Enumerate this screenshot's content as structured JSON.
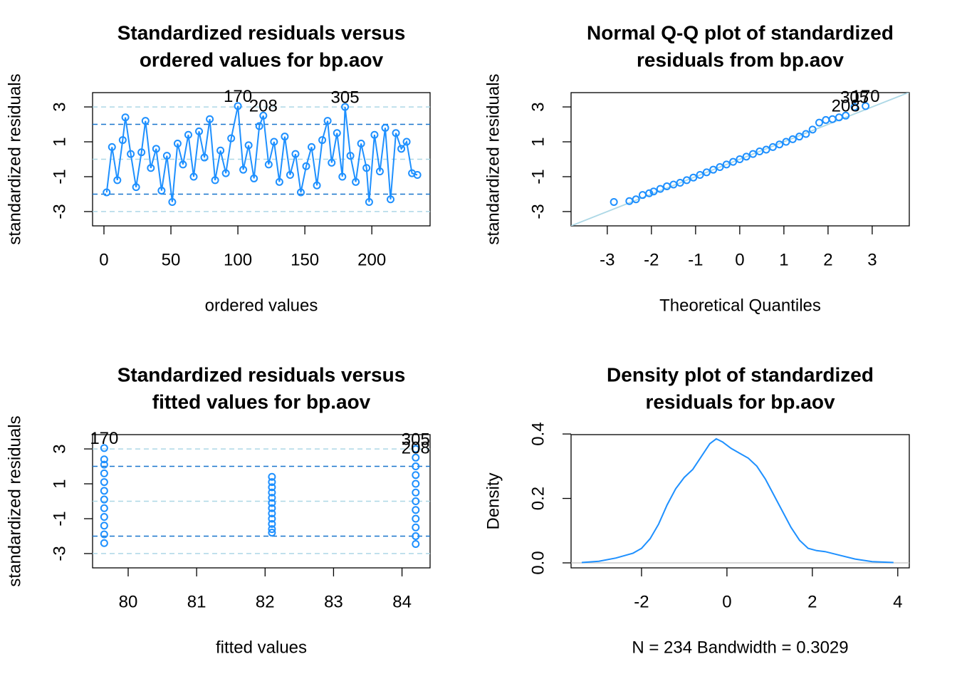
{
  "chart_data": [
    {
      "type": "line",
      "markers": true,
      "title_lines": [
        "Standardized residuals versus",
        "ordered values for bp.aov"
      ],
      "xlabel": "ordered values",
      "ylabel": "standardized residuals",
      "xlim": [
        -8.5,
        243.5
      ],
      "ylim": [
        -3.82,
        3.82
      ],
      "xticks": [
        0,
        50,
        100,
        150,
        200
      ],
      "yticks": [
        -3,
        -1,
        1,
        3
      ],
      "color": "#1e90ff",
      "reflines": [
        {
          "y": 3,
          "color": "#add8e6"
        },
        {
          "y": 2,
          "color": "#1874cd"
        },
        {
          "y": 0,
          "color": "#add8e6"
        },
        {
          "y": -2,
          "color": "#1874cd"
        },
        {
          "y": -3,
          "color": "#add8e6"
        }
      ],
      "x": [
        2,
        6,
        10,
        14,
        16,
        20,
        24,
        28,
        31,
        35,
        39,
        43,
        47,
        51,
        55,
        59,
        63,
        67,
        71,
        75,
        79,
        83,
        87,
        91,
        95,
        100,
        104,
        108,
        112,
        116,
        119,
        123,
        127,
        131,
        135,
        139,
        143,
        147,
        151,
        155,
        159,
        163,
        167,
        170,
        174,
        178,
        180,
        184,
        188,
        192,
        196,
        198,
        202,
        206,
        210,
        214,
        218,
        222,
        226,
        230,
        234
      ],
      "values": [
        -1.9,
        0.7,
        -1.2,
        1.1,
        2.4,
        0.3,
        -1.6,
        0.4,
        2.2,
        -0.5,
        0.6,
        -1.8,
        0.2,
        -2.45,
        0.9,
        -0.3,
        1.4,
        -1.0,
        1.6,
        0.1,
        2.3,
        -1.2,
        0.5,
        -0.8,
        1.2,
        3.05,
        -0.6,
        0.8,
        -1.1,
        1.9,
        2.5,
        -0.3,
        1.0,
        -1.3,
        1.3,
        -0.9,
        0.3,
        -1.9,
        -0.4,
        0.7,
        -1.5,
        1.1,
        2.2,
        -0.2,
        1.5,
        -1.0,
        3.0,
        0.2,
        -1.3,
        0.9,
        -0.5,
        -2.45,
        1.4,
        -0.7,
        1.8,
        -2.3,
        1.5,
        0.6,
        1.0,
        -0.8,
        -0.9
      ],
      "point_labels": [
        {
          "text": "170",
          "x": 100,
          "y": 3.05
        },
        {
          "text": "208",
          "x": 119,
          "y": 2.5
        },
        {
          "text": "305",
          "x": 180,
          "y": 3.0
        }
      ]
    },
    {
      "type": "scatter",
      "title_lines": [
        "Normal Q-Q plot of standardized",
        "residuals from bp.aov"
      ],
      "xlabel": "Theoretical Quantiles",
      "ylabel": "standardized residuals",
      "xlim": [
        -3.82,
        3.84
      ],
      "ylim": [
        -3.82,
        3.82
      ],
      "xticks": [
        -3,
        -2,
        -1,
        0,
        1,
        2,
        3
      ],
      "yticks": [
        -3,
        -1,
        1,
        3
      ],
      "color": "#1e90ff",
      "qqline": {
        "intercept": 0,
        "slope": 1,
        "color": "#add8e6"
      },
      "x": [
        -2.85,
        -2.5,
        -2.35,
        -2.2,
        -2.05,
        -1.95,
        -1.8,
        -1.65,
        -1.5,
        -1.35,
        -1.2,
        -1.05,
        -0.9,
        -0.75,
        -0.6,
        -0.45,
        -0.3,
        -0.15,
        0,
        0.15,
        0.3,
        0.45,
        0.6,
        0.75,
        0.9,
        1.05,
        1.2,
        1.35,
        1.5,
        1.65,
        1.8,
        1.95,
        2.1,
        2.25,
        2.4,
        2.6,
        2.85
      ],
      "values": [
        -2.45,
        -2.4,
        -2.3,
        -2.05,
        -1.95,
        -1.85,
        -1.7,
        -1.55,
        -1.45,
        -1.35,
        -1.2,
        -1.05,
        -0.9,
        -0.75,
        -0.6,
        -0.45,
        -0.3,
        -0.15,
        0.0,
        0.15,
        0.3,
        0.45,
        0.55,
        0.7,
        0.85,
        1.0,
        1.15,
        1.3,
        1.45,
        1.7,
        2.1,
        2.25,
        2.3,
        2.4,
        2.5,
        3.0,
        3.05
      ],
      "point_labels": [
        {
          "text": "170",
          "x": 2.85,
          "y": 3.05
        },
        {
          "text": "305",
          "x": 2.6,
          "y": 3.0
        },
        {
          "text": "208",
          "x": 2.4,
          "y": 2.5
        }
      ]
    },
    {
      "type": "scatter",
      "title_lines": [
        "Standardized residuals versus",
        "fitted values for bp.aov"
      ],
      "xlabel": "fitted values",
      "ylabel": "standardized residuals",
      "xlim": [
        79.48,
        84.41
      ],
      "ylim": [
        -3.82,
        3.82
      ],
      "xticks": [
        80,
        81,
        82,
        83,
        84
      ],
      "yticks": [
        -3,
        -1,
        1,
        3
      ],
      "color": "#1e90ff",
      "reflines": [
        {
          "y": 3,
          "color": "#add8e6"
        },
        {
          "y": 2,
          "color": "#1874cd"
        },
        {
          "y": 0,
          "color": "#add8e6"
        },
        {
          "y": -2,
          "color": "#1874cd"
        },
        {
          "y": -3,
          "color": "#add8e6"
        }
      ],
      "x": [
        79.65,
        79.65,
        79.65,
        79.65,
        79.65,
        79.65,
        79.65,
        79.65,
        79.65,
        79.65,
        79.65,
        79.65,
        82.1,
        82.1,
        82.1,
        82.1,
        82.1,
        82.1,
        82.1,
        82.1,
        82.1,
        82.1,
        82.1,
        82.1,
        84.2,
        84.2,
        84.2,
        84.2,
        84.2,
        84.2,
        84.2,
        84.2,
        84.2,
        84.2,
        84.2,
        84.2
      ],
      "values": [
        3.05,
        2.4,
        2.1,
        1.6,
        1.1,
        0.6,
        0.1,
        -0.4,
        -0.9,
        -1.4,
        -1.9,
        -2.4,
        1.4,
        1.1,
        0.8,
        0.5,
        0.2,
        -0.1,
        -0.4,
        -0.7,
        -1.0,
        -1.3,
        -1.6,
        -1.8,
        3.0,
        2.5,
        2.0,
        1.5,
        1.0,
        0.5,
        0.0,
        -0.5,
        -1.0,
        -1.5,
        -2.0,
        -2.45
      ],
      "point_labels": [
        {
          "text": "170",
          "x": 79.65,
          "y": 3.05
        },
        {
          "text": "305",
          "x": 84.2,
          "y": 3.0
        },
        {
          "text": "208",
          "x": 84.2,
          "y": 2.5
        }
      ]
    },
    {
      "type": "line",
      "markers": false,
      "title_lines": [
        "Density plot of standardized",
        "residuals for bp.aov"
      ],
      "xlabel": "N = 234   Bandwidth = 0.3029",
      "ylabel": "Density",
      "xlim": [
        -3.65,
        4.27
      ],
      "ylim": [
        -0.0155,
        0.398
      ],
      "xticks": [
        -2,
        0,
        2,
        4
      ],
      "yticks": [
        {
          "value": 0,
          "label": "0.0"
        },
        0.2,
        {
          "value": 0.4,
          "label": "0.4"
        }
      ],
      "color": "#1e90ff",
      "baseline_color": "#bebebe",
      "x": [
        -3.4,
        -3,
        -2.6,
        -2.2,
        -2,
        -1.8,
        -1.6,
        -1.4,
        -1.2,
        -1,
        -0.8,
        -0.6,
        -0.4,
        -0.25,
        -0.1,
        0.1,
        0.3,
        0.5,
        0.7,
        0.9,
        1.1,
        1.3,
        1.5,
        1.7,
        1.9,
        2.1,
        2.3,
        2.6,
        3,
        3.4,
        3.9
      ],
      "values": [
        0.001,
        0.005,
        0.015,
        0.03,
        0.045,
        0.075,
        0.12,
        0.18,
        0.23,
        0.265,
        0.29,
        0.33,
        0.37,
        0.385,
        0.375,
        0.355,
        0.34,
        0.325,
        0.3,
        0.26,
        0.21,
        0.16,
        0.11,
        0.07,
        0.045,
        0.038,
        0.035,
        0.025,
        0.012,
        0.004,
        0.001
      ]
    }
  ]
}
